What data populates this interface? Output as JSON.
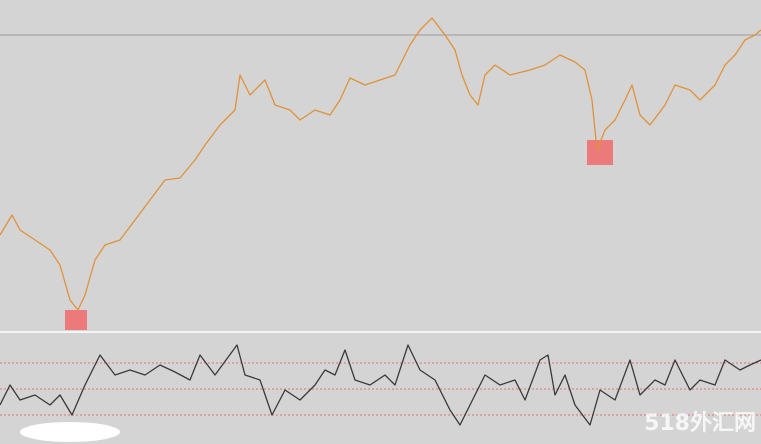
{
  "chart_data": [
    {
      "type": "line",
      "color": "#e0923a",
      "reference_line": 295,
      "reference_color": "#9a9a9a",
      "xlim": [
        0,
        761
      ],
      "ylim": [
        0,
        330
      ],
      "x": [
        0,
        12,
        20,
        35,
        50,
        60,
        70,
        78,
        85,
        95,
        105,
        120,
        135,
        150,
        165,
        180,
        195,
        205,
        220,
        235,
        240,
        250,
        265,
        275,
        290,
        300,
        315,
        330,
        340,
        350,
        365,
        380,
        395,
        410,
        420,
        432,
        445,
        455,
        462,
        470,
        478,
        485,
        495,
        510,
        530,
        545,
        560,
        575,
        585,
        592,
        597,
        605,
        615,
        625,
        632,
        640,
        650,
        665,
        675,
        690,
        700,
        715,
        725,
        735,
        745,
        755,
        761
      ],
      "values": [
        95,
        115,
        100,
        90,
        80,
        65,
        30,
        20,
        35,
        70,
        85,
        90,
        110,
        130,
        150,
        152,
        170,
        185,
        205,
        220,
        255,
        235,
        250,
        225,
        220,
        210,
        220,
        215,
        230,
        252,
        245,
        250,
        255,
        285,
        300,
        312,
        295,
        280,
        255,
        235,
        225,
        255,
        265,
        255,
        260,
        265,
        275,
        268,
        260,
        230,
        180,
        200,
        210,
        230,
        245,
        215,
        205,
        225,
        245,
        240,
        230,
        245,
        265,
        275,
        290,
        295,
        300
      ]
    },
    {
      "type": "line",
      "color": "#3a3a3a",
      "levels": [
        81,
        55,
        29
      ],
      "level_color": "#e07070",
      "xlim": [
        0,
        761
      ],
      "ylim": [
        0,
        109
      ],
      "x": [
        0,
        10,
        20,
        35,
        50,
        60,
        72,
        85,
        100,
        115,
        130,
        145,
        160,
        175,
        190,
        200,
        215,
        237,
        245,
        260,
        272,
        285,
        300,
        315,
        325,
        335,
        345,
        355,
        370,
        385,
        395,
        408,
        420,
        435,
        450,
        460,
        470,
        485,
        500,
        515,
        525,
        540,
        548,
        555,
        565,
        575,
        590,
        600,
        615,
        630,
        640,
        655,
        665,
        675,
        690,
        700,
        715,
        725,
        740,
        750,
        761
      ],
      "values": [
        39,
        59,
        44,
        49,
        39,
        49,
        29,
        59,
        89,
        69,
        74,
        69,
        79,
        72,
        64,
        89,
        69,
        99,
        69,
        64,
        29,
        54,
        44,
        59,
        74,
        69,
        94,
        64,
        59,
        69,
        59,
        99,
        74,
        64,
        34,
        19,
        39,
        69,
        59,
        64,
        44,
        84,
        89,
        49,
        69,
        39,
        19,
        54,
        44,
        84,
        49,
        64,
        59,
        84,
        54,
        64,
        59,
        84,
        74,
        79,
        84
      ],
      "watermark": "518外汇网"
    }
  ]
}
